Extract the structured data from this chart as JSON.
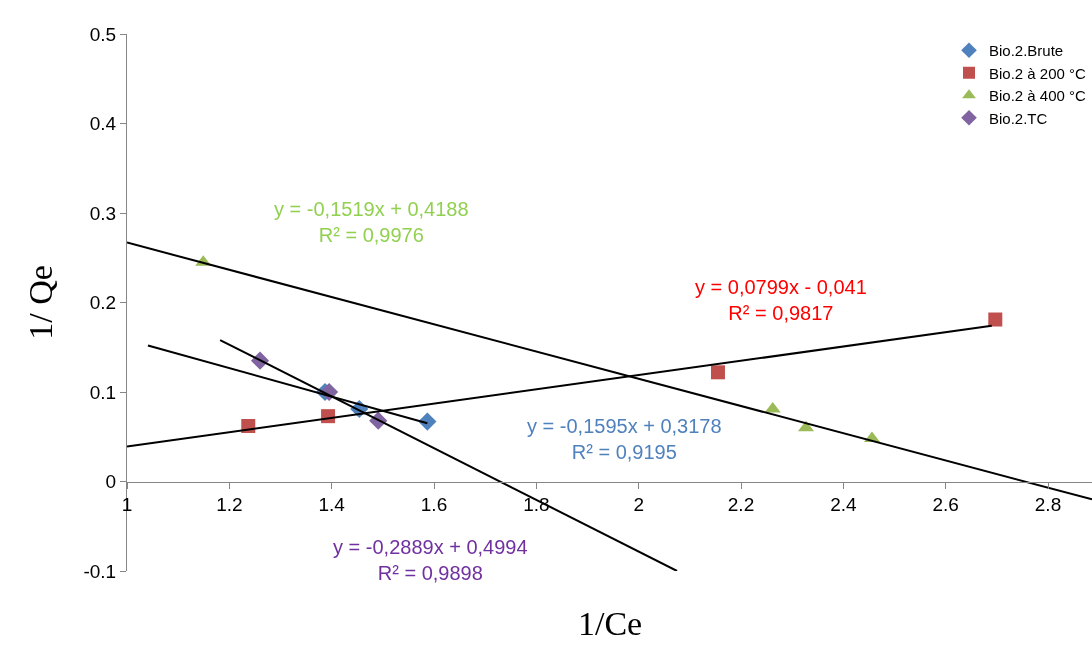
{
  "chart_data": {
    "type": "scatter",
    "xlabel": "1/Ce",
    "ylabel": "1/ Qe",
    "xlim": [
      1,
      2.886
    ],
    "xticks": [
      1,
      1.2,
      1.4,
      1.6,
      1.8,
      2,
      2.2,
      2.4,
      2.6,
      2.8
    ],
    "ylim": [
      -0.1,
      0.5
    ],
    "yticks": [
      -0.1,
      0,
      0.1,
      0.2,
      0.3,
      0.4,
      0.5
    ],
    "legend": "top right",
    "series": [
      {
        "name": "Bio.2.Brute",
        "marker": "diamond",
        "color": "#4f81bd",
        "x": [
          1.387,
          1.454,
          1.587
        ],
        "values": [
          0.1,
          0.081,
          0.067
        ]
      },
      {
        "name": "Bio.2 à 200 °C",
        "marker": "square",
        "color": "#c0504d",
        "x": [
          1.237,
          1.393,
          2.155,
          2.697
        ],
        "values": [
          0.062,
          0.073,
          0.122,
          0.181
        ]
      },
      {
        "name": "Bio.2 à 400 °C",
        "marker": "triangle",
        "color": "#9bbb59",
        "x": [
          1.149,
          2.262,
          2.327,
          2.456
        ],
        "values": [
          0.245,
          0.081,
          0.06,
          0.048
        ]
      },
      {
        "name": "Bio.2.TC",
        "marker": "diamond",
        "color": "#8064a2",
        "x": [
          1.26,
          1.395,
          1.491
        ],
        "values": [
          0.135,
          0.1,
          0.068
        ]
      },
      {
        "type": "line",
        "line_style": "solid",
        "color": "#000000",
        "x": [
          1.041,
          1.587
        ],
        "values": [
          0.152,
          0.065
        ]
      },
      {
        "type": "line",
        "line_style": "solid",
        "color": "#000000",
        "x": [
          1,
          2.69
        ],
        "values": [
          0.039,
          0.174
        ]
      },
      {
        "type": "line",
        "line_style": "solid",
        "color": "#000000",
        "x": [
          1,
          2.886
        ],
        "values": [
          0.267,
          -0.02
        ]
      },
      {
        "type": "line",
        "line_style": "solid",
        "color": "#000000",
        "x": [
          1.182,
          2.075
        ],
        "values": [
          0.158,
          -0.1
        ]
      }
    ],
    "annotations": [
      "y = -0,1595x + 0,3178\nR² = 0,9195",
      "y = 0,0799x - 0,041\nR² = 0,9817",
      "y = -0,1519x + 0,4188\nR² = 0,9976",
      "y = -0,2889x + 0,4994\nR² = 0,9898"
    ]
  }
}
